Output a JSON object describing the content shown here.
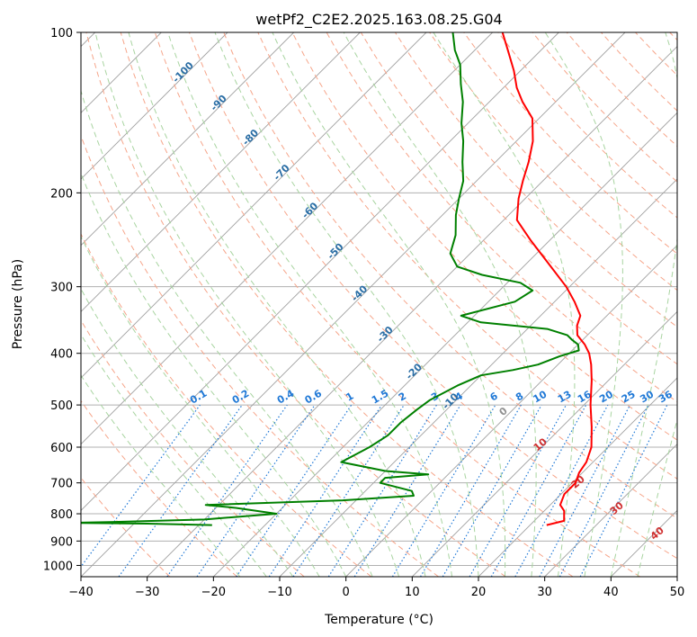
{
  "chart_data": {
    "type": "line",
    "title": "wetPf2_C2E2.2025.163.08.25.G04",
    "xlabel": "Temperature (°C)",
    "ylabel": "Pressure (hPa)",
    "x_scale": "skewed-linear",
    "y_scale": "log-reversed",
    "xlim": [
      -40,
      50
    ],
    "ylim": [
      1050,
      100
    ],
    "x_ticks": [
      -40,
      -30,
      -20,
      -10,
      0,
      10,
      20,
      30,
      40,
      50
    ],
    "x_tick_labels": [
      "−40",
      "−30",
      "−20",
      "−10",
      "0",
      "10",
      "20",
      "30",
      "40",
      "50"
    ],
    "y_ticks": [
      100,
      200,
      300,
      400,
      500,
      600,
      700,
      800,
      900,
      1000
    ],
    "y_tick_labels": [
      "100",
      "200",
      "300",
      "400",
      "500",
      "600",
      "700",
      "800",
      "900",
      "1000"
    ],
    "grid": true,
    "series": [
      {
        "color": "#ff0000",
        "points": [
          {
            "t": 22.5,
            "p": 840
          },
          {
            "t": 24.5,
            "p": 825
          },
          {
            "t": 23.0,
            "p": 790
          },
          {
            "t": 21.5,
            "p": 770
          },
          {
            "t": 20.5,
            "p": 735
          },
          {
            "t": 20.5,
            "p": 700
          },
          {
            "t": 19.5,
            "p": 670
          },
          {
            "t": 19.0,
            "p": 640
          },
          {
            "t": 17.5,
            "p": 600
          },
          {
            "t": 14.5,
            "p": 550
          },
          {
            "t": 11.0,
            "p": 500
          },
          {
            "t": 7.5,
            "p": 450
          },
          {
            "t": 5.0,
            "p": 420
          },
          {
            "t": 3.0,
            "p": 400
          },
          {
            "t": 1.0,
            "p": 385
          },
          {
            "t": -1.5,
            "p": 370
          },
          {
            "t": -3.0,
            "p": 355
          },
          {
            "t": -4.0,
            "p": 340
          },
          {
            "t": -7.0,
            "p": 320
          },
          {
            "t": -10.5,
            "p": 300
          },
          {
            "t": -17.0,
            "p": 270
          },
          {
            "t": -23.0,
            "p": 245
          },
          {
            "t": -28.0,
            "p": 225
          },
          {
            "t": -31.0,
            "p": 205
          },
          {
            "t": -33.0,
            "p": 190
          },
          {
            "t": -35.0,
            "p": 175
          },
          {
            "t": -37.5,
            "p": 160
          },
          {
            "t": -41.0,
            "p": 145
          },
          {
            "t": -45.0,
            "p": 135
          },
          {
            "t": -48.0,
            "p": 127
          },
          {
            "t": -51.0,
            "p": 118
          },
          {
            "t": -55.0,
            "p": 108
          },
          {
            "t": -58.5,
            "p": 100
          }
        ]
      },
      {
        "color": "#008000",
        "points": [
          {
            "t": -28.0,
            "p": 840
          },
          {
            "t": -38.0,
            "p": 835
          },
          {
            "t": -50.0,
            "p": 832
          },
          {
            "t": -42.0,
            "p": 828
          },
          {
            "t": -30.0,
            "p": 820
          },
          {
            "t": -20.0,
            "p": 800
          },
          {
            "t": -27.0,
            "p": 780
          },
          {
            "t": -32.0,
            "p": 770
          },
          {
            "t": -12.0,
            "p": 755
          },
          {
            "t": -2.0,
            "p": 740
          },
          {
            "t": -3.0,
            "p": 725
          },
          {
            "t": -9.0,
            "p": 700
          },
          {
            "t": -9.0,
            "p": 685
          },
          {
            "t": -3.0,
            "p": 675
          },
          {
            "t": -10.0,
            "p": 665
          },
          {
            "t": -18.0,
            "p": 640
          },
          {
            "t": -17.0,
            "p": 620
          },
          {
            "t": -16.0,
            "p": 600
          },
          {
            "t": -15.0,
            "p": 570
          },
          {
            "t": -15.0,
            "p": 540
          },
          {
            "t": -14.5,
            "p": 510
          },
          {
            "t": -14.0,
            "p": 490
          },
          {
            "t": -12.0,
            "p": 460
          },
          {
            "t": -10.0,
            "p": 440
          },
          {
            "t": -6.0,
            "p": 430
          },
          {
            "t": -3.0,
            "p": 420
          },
          {
            "t": -1.0,
            "p": 405
          },
          {
            "t": 1.0,
            "p": 395
          },
          {
            "t": 0.0,
            "p": 385
          },
          {
            "t": -1.5,
            "p": 378
          },
          {
            "t": -3.0,
            "p": 370
          },
          {
            "t": -7.0,
            "p": 360
          },
          {
            "t": -18.0,
            "p": 350
          },
          {
            "t": -22.0,
            "p": 340
          },
          {
            "t": -16.0,
            "p": 320
          },
          {
            "t": -15.0,
            "p": 305
          },
          {
            "t": -18.0,
            "p": 295
          },
          {
            "t": -25.0,
            "p": 285
          },
          {
            "t": -30.0,
            "p": 275
          },
          {
            "t": -33.0,
            "p": 260
          },
          {
            "t": -35.0,
            "p": 240
          },
          {
            "t": -38.0,
            "p": 220
          },
          {
            "t": -40.0,
            "p": 205
          },
          {
            "t": -42.0,
            "p": 190
          },
          {
            "t": -45.0,
            "p": 175
          },
          {
            "t": -48.0,
            "p": 160
          },
          {
            "t": -51.0,
            "p": 148
          },
          {
            "t": -54.0,
            "p": 135
          },
          {
            "t": -57.0,
            "p": 125
          },
          {
            "t": -60.0,
            "p": 115
          },
          {
            "t": -63.0,
            "p": 108
          },
          {
            "t": -66.0,
            "p": 100
          }
        ]
      }
    ],
    "isotherm_labels": [
      "-100",
      "-90",
      "-80",
      "-70",
      "-60",
      "-50",
      "-40",
      "-30",
      "-20",
      "-10"
    ],
    "mixing_ratio_labels": [
      "0.1",
      "0.2",
      "0.4",
      "0.6",
      "1",
      "1.5",
      "2",
      "3",
      "4",
      "6",
      "8",
      "10",
      "13",
      "16",
      "20",
      "25",
      "30",
      "36"
    ],
    "moist_adiabat_labels": [
      "0",
      "10",
      "20",
      "30",
      "40"
    ],
    "colors": {
      "temperature": "#ff0000",
      "dewpoint": "#008000",
      "isotherm": "#a0a0a0",
      "dry_adiabat": "#f6a58a",
      "moist_adiabat": "#a8d4a0",
      "mixing_ratio": "#1f78d6",
      "isotherm_label": "#2b6ea5",
      "moist_label": "#d03030"
    }
  }
}
